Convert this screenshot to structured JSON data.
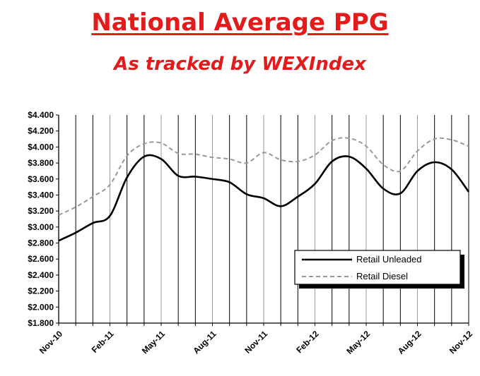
{
  "title": "National Average PPG",
  "subtitle": "As tracked by WEXIndex",
  "chart_data": {
    "type": "line",
    "title": "National Average PPG",
    "subtitle": "As tracked by WEXIndex",
    "xlabel": "",
    "ylabel": "",
    "ylim": [
      1.8,
      4.4
    ],
    "ytick_step": 0.2,
    "x_months": [
      "Nov-10",
      "Dec-10",
      "Jan-11",
      "Feb-11",
      "Mar-11",
      "Apr-11",
      "May-11",
      "Jun-11",
      "Jul-11",
      "Aug-11",
      "Sep-11",
      "Oct-11",
      "Nov-11",
      "Dec-11",
      "Jan-12",
      "Feb-12",
      "Mar-12",
      "Apr-12",
      "May-12",
      "Jun-12",
      "Jul-12",
      "Aug-12",
      "Sep-12",
      "Oct-12",
      "Nov-12"
    ],
    "x_tick_labels": [
      "Nov-10",
      "Feb-11",
      "May-11",
      "Aug-11",
      "Nov-11",
      "Feb-12",
      "May-12",
      "Aug-12",
      "Nov-12"
    ],
    "y_tick_labels": [
      "$1.800",
      "$2.000",
      "$2.200",
      "$2.400",
      "$2.600",
      "$2.800",
      "$3.000",
      "$3.200",
      "$3.400",
      "$3.600",
      "$3.800",
      "$4.000",
      "$4.200",
      "$4.400"
    ],
    "grid": "vertical",
    "legend": "bottom-right",
    "series": [
      {
        "name": "Retail Unleaded",
        "color": "#000000",
        "dash": "solid",
        "values": [
          2.83,
          2.93,
          3.05,
          3.14,
          3.62,
          3.88,
          3.85,
          3.64,
          3.63,
          3.6,
          3.56,
          3.41,
          3.36,
          3.26,
          3.38,
          3.54,
          3.82,
          3.88,
          3.73,
          3.48,
          3.42,
          3.7,
          3.81,
          3.72,
          3.44
        ]
      },
      {
        "name": "Retail Diesel",
        "color": "#999999",
        "dash": "dashed",
        "values": [
          3.15,
          3.25,
          3.38,
          3.53,
          3.89,
          4.04,
          4.05,
          3.92,
          3.91,
          3.87,
          3.85,
          3.8,
          3.93,
          3.84,
          3.82,
          3.9,
          4.08,
          4.11,
          4.01,
          3.78,
          3.7,
          3.95,
          4.1,
          4.09,
          4.01
        ]
      }
    ]
  }
}
